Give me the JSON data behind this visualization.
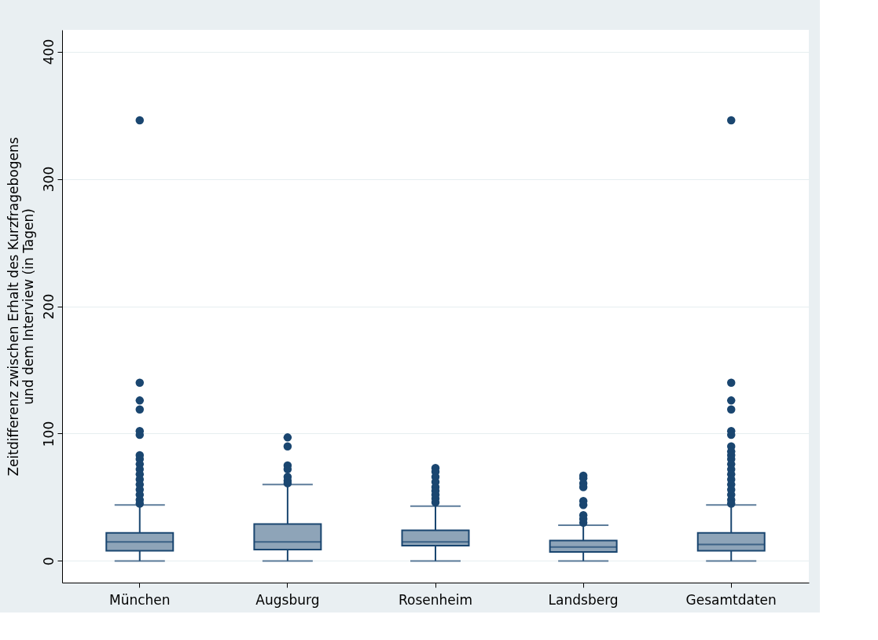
{
  "chart_data": {
    "type": "box",
    "ylabel": "Zeitdifferenz zwischen Erhalt des Kurzfragebogens und dem Interview (in Tagen)",
    "categories": [
      "München",
      "Augsburg",
      "Rosenheim",
      "Landsberg",
      "Gesamtdaten"
    ],
    "ylim": [
      -17,
      417
    ],
    "yticks": [
      0,
      100,
      200,
      300,
      400
    ],
    "grid": "y",
    "series": [
      {
        "color": "#8ea4b8",
        "boxes": [
          {
            "low": 0,
            "q1": 8,
            "median": 15,
            "q3": 22,
            "high": 44,
            "outliers": [
              346,
              140,
              126,
              119,
              102,
              99,
              83,
              80,
              76,
              72,
              68,
              64,
              60,
              56,
              52,
              48,
              45
            ]
          },
          {
            "low": 0,
            "q1": 9,
            "median": 15,
            "q3": 29,
            "high": 60,
            "outliers": [
              97,
              90,
              75,
              72,
              66,
              63,
              61
            ]
          },
          {
            "low": 0,
            "q1": 12,
            "median": 15,
            "q3": 24,
            "high": 43,
            "outliers": [
              73,
              70,
              66,
              62,
              58,
              55,
              52,
              49,
              46
            ]
          },
          {
            "low": 0,
            "q1": 7,
            "median": 11,
            "q3": 16,
            "high": 28,
            "outliers": [
              67,
              65,
              61,
              58,
              47,
              44,
              36,
              33,
              30
            ]
          },
          {
            "low": 0,
            "q1": 8,
            "median": 13,
            "q3": 22,
            "high": 44,
            "outliers": [
              346,
              140,
              126,
              119,
              102,
              99,
              90,
              86,
              83,
              80,
              76,
              72,
              68,
              64,
              60,
              56,
              52,
              48,
              45
            ]
          }
        ]
      }
    ]
  }
}
